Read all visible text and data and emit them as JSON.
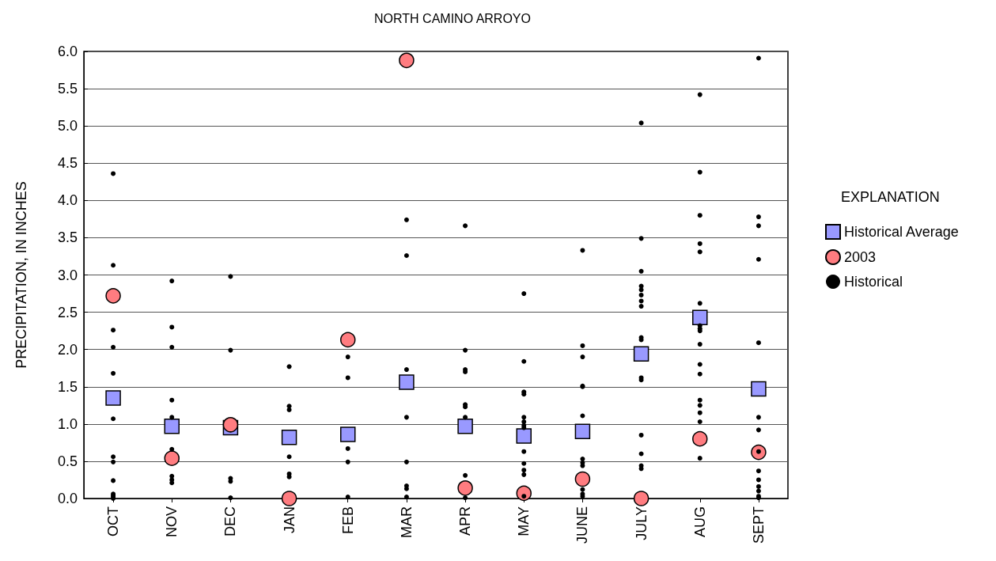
{
  "chart_data": {
    "type": "scatter",
    "title": "NORTH CAMINO ARROYO",
    "ylabel": "PRECIPITATION, IN INCHES",
    "legend_title": "EXPLANATION",
    "categories": [
      "OCT",
      "NOV",
      "DEC",
      "JAN",
      "FEB",
      "MAR",
      "APR",
      "MAY",
      "JUNE",
      "JULY",
      "AUG",
      "SEPT"
    ],
    "ylim": [
      0,
      6
    ],
    "yticks": [
      {
        "value": 0,
        "label": "0.0"
      },
      {
        "value": 0.5,
        "label": "0.5"
      },
      {
        "value": 1,
        "label": "1.0"
      },
      {
        "value": 1.5,
        "label": "1.5"
      },
      {
        "value": 2,
        "label": "2.0"
      },
      {
        "value": 2.5,
        "label": "2.5"
      },
      {
        "value": 3,
        "label": "3.0"
      },
      {
        "value": 3.5,
        "label": "3.5"
      },
      {
        "value": 4,
        "label": "4.0"
      },
      {
        "value": 4.5,
        "label": "4.5"
      },
      {
        "value": 5,
        "label": "5.0"
      },
      {
        "value": 5.5,
        "label": "5.5"
      },
      {
        "value": 6,
        "label": "6.0"
      }
    ],
    "grid": "y",
    "legend": "right",
    "series": [
      {
        "name": "Historical Average",
        "color": "#9999ff",
        "marker": "square",
        "values": [
          1.35,
          0.97,
          0.95,
          0.82,
          0.86,
          1.56,
          0.97,
          0.84,
          0.9,
          1.94,
          2.43,
          1.47
        ]
      },
      {
        "name": "2003",
        "color": "#ff7c80",
        "marker": "circle",
        "values": [
          2.72,
          0.54,
          0.99,
          0.0,
          2.13,
          5.88,
          0.14,
          0.07,
          0.26,
          0.0,
          0.8,
          0.62
        ]
      },
      {
        "name": "Historical",
        "color": "#000000",
        "marker": "circle",
        "x": [
          "OCT",
          "OCT",
          "OCT",
          "OCT",
          "OCT",
          "OCT",
          "OCT",
          "OCT",
          "OCT",
          "OCT",
          "OCT",
          "OCT",
          "OCT",
          "NOV",
          "NOV",
          "NOV",
          "NOV",
          "NOV",
          "NOV",
          "NOV",
          "NOV",
          "NOV",
          "DEC",
          "DEC",
          "DEC",
          "DEC",
          "DEC",
          "JAN",
          "JAN",
          "JAN",
          "JAN",
          "JAN",
          "JAN",
          "FEB",
          "FEB",
          "FEB",
          "FEB",
          "FEB",
          "MAR",
          "MAR",
          "MAR",
          "MAR",
          "MAR",
          "MAR",
          "MAR",
          "MAR",
          "APR",
          "APR",
          "APR",
          "APR",
          "APR",
          "APR",
          "APR",
          "APR",
          "APR",
          "MAY",
          "MAY",
          "MAY",
          "MAY",
          "MAY",
          "MAY",
          "MAY",
          "MAY",
          "MAY",
          "MAY",
          "MAY",
          "MAY",
          "MAY",
          "JUNE",
          "JUNE",
          "JUNE",
          "JUNE",
          "JUNE",
          "JUNE",
          "JUNE",
          "JUNE",
          "JUNE",
          "JUNE",
          "JUNE",
          "JUNE",
          "JULY",
          "JULY",
          "JULY",
          "JULY",
          "JULY",
          "JULY",
          "JULY",
          "JULY",
          "JULY",
          "JULY",
          "JULY",
          "JULY",
          "JULY",
          "JULY",
          "JULY",
          "JULY",
          "AUG",
          "AUG",
          "AUG",
          "AUG",
          "AUG",
          "AUG",
          "AUG",
          "AUG",
          "AUG",
          "AUG",
          "AUG",
          "AUG",
          "AUG",
          "AUG",
          "AUG",
          "AUG",
          "AUG",
          "SEPT",
          "SEPT",
          "SEPT",
          "SEPT",
          "SEPT",
          "SEPT",
          "SEPT",
          "SEPT",
          "SEPT",
          "SEPT",
          "SEPT",
          "SEPT",
          "SEPT",
          "SEPT"
        ],
        "values": [
          4.36,
          3.13,
          2.26,
          2.03,
          1.68,
          1.07,
          0.56,
          0.49,
          0.24,
          0.06,
          0.04,
          0.02,
          0.0,
          2.92,
          2.3,
          2.03,
          1.32,
          1.09,
          0.66,
          0.3,
          0.25,
          0.21,
          2.98,
          1.99,
          0.27,
          0.23,
          0.01,
          1.77,
          1.24,
          1.19,
          0.56,
          0.33,
          0.29,
          1.9,
          1.62,
          0.67,
          0.49,
          0.02,
          3.74,
          3.26,
          1.73,
          1.09,
          0.49,
          0.17,
          0.13,
          0.02,
          3.66,
          1.99,
          1.73,
          1.7,
          1.26,
          1.23,
          1.09,
          0.31,
          0.01,
          2.75,
          1.84,
          1.43,
          1.4,
          1.09,
          1.03,
          0.98,
          0.95,
          0.63,
          0.47,
          0.38,
          0.32,
          0.03,
          3.33,
          2.05,
          1.9,
          1.51,
          1.5,
          1.11,
          0.53,
          0.48,
          0.44,
          0.12,
          0.06,
          0.03,
          5.04,
          3.49,
          3.05,
          2.85,
          2.8,
          2.73,
          2.65,
          2.58,
          2.16,
          2.13,
          1.62,
          1.59,
          0.85,
          0.6,
          0.44,
          0.4,
          5.42,
          4.38,
          3.8,
          3.42,
          3.31,
          2.62,
          2.32,
          2.28,
          2.25,
          2.07,
          1.8,
          1.67,
          1.32,
          1.25,
          1.15,
          1.03,
          0.54,
          5.91,
          3.78,
          3.66,
          3.21,
          2.09,
          1.09,
          0.92,
          0.63,
          0.37,
          0.25,
          0.16,
          0.1,
          0.03,
          0.01
        ]
      }
    ]
  }
}
